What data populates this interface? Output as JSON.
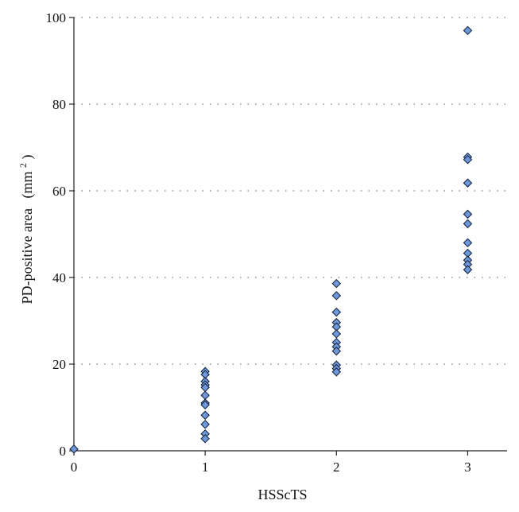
{
  "chart_data": {
    "type": "scatter",
    "title": "",
    "xlabel": "HSScTS",
    "ylabel_main": "PD-positive area",
    "ylabel_unit_open": "(mm",
    "ylabel_unit_sup": "2",
    "ylabel_unit_close": ")",
    "xlim": [
      0,
      3.3
    ],
    "ylim": [
      0,
      100
    ],
    "x_ticks": [
      0,
      1,
      2,
      3
    ],
    "x_tick_labels": [
      "0",
      "1",
      "2",
      "3"
    ],
    "y_ticks": [
      0,
      20,
      40,
      60,
      80,
      100
    ],
    "y_tick_labels": [
      "0",
      "20",
      "40",
      "60",
      "80",
      "100"
    ],
    "grid": "horizontal-dotted",
    "marker": "diamond",
    "marker_color": "#6f98d8",
    "marker_edge": "#1a2a48",
    "points": [
      {
        "x": 0,
        "y": 0.4
      },
      {
        "x": 1,
        "y": 18.3
      },
      {
        "x": 1,
        "y": 17.6
      },
      {
        "x": 1,
        "y": 16.0
      },
      {
        "x": 1,
        "y": 15.2
      },
      {
        "x": 1,
        "y": 14.6
      },
      {
        "x": 1,
        "y": 12.8
      },
      {
        "x": 1,
        "y": 11.0
      },
      {
        "x": 1,
        "y": 10.6
      },
      {
        "x": 1,
        "y": 8.2
      },
      {
        "x": 1,
        "y": 6.1
      },
      {
        "x": 1,
        "y": 3.9
      },
      {
        "x": 1,
        "y": 2.8
      },
      {
        "x": 2,
        "y": 38.6
      },
      {
        "x": 2,
        "y": 35.8
      },
      {
        "x": 2,
        "y": 32.0
      },
      {
        "x": 2,
        "y": 29.6
      },
      {
        "x": 2,
        "y": 28.6
      },
      {
        "x": 2,
        "y": 27.0
      },
      {
        "x": 2,
        "y": 25.0
      },
      {
        "x": 2,
        "y": 24.0
      },
      {
        "x": 2,
        "y": 23.0
      },
      {
        "x": 2,
        "y": 19.8
      },
      {
        "x": 2,
        "y": 19.0
      },
      {
        "x": 2,
        "y": 18.2
      },
      {
        "x": 3,
        "y": 97.0
      },
      {
        "x": 3,
        "y": 67.8
      },
      {
        "x": 3,
        "y": 67.2
      },
      {
        "x": 3,
        "y": 61.8
      },
      {
        "x": 3,
        "y": 54.6
      },
      {
        "x": 3,
        "y": 52.4
      },
      {
        "x": 3,
        "y": 48.0
      },
      {
        "x": 3,
        "y": 45.6
      },
      {
        "x": 3,
        "y": 44.0
      },
      {
        "x": 3,
        "y": 43.0
      },
      {
        "x": 3,
        "y": 41.8
      }
    ]
  }
}
